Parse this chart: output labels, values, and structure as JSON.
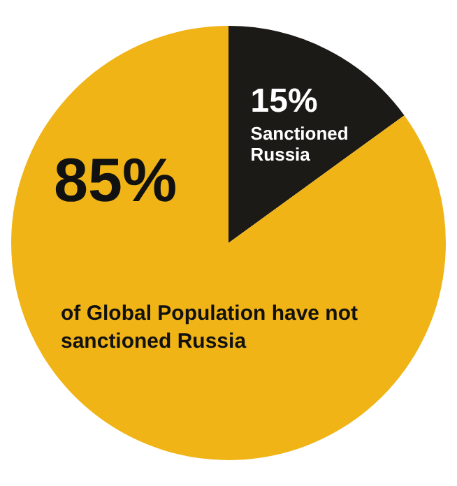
{
  "chart_data": {
    "type": "pie",
    "categories": [
      "Sanctioned Russia",
      "of Global Population have not sanctioned Russia"
    ],
    "values": [
      15,
      85
    ],
    "colors": [
      "#1c1a17",
      "#f0b416"
    ],
    "value_labels": [
      "15%",
      "85%"
    ],
    "legend": false
  }
}
